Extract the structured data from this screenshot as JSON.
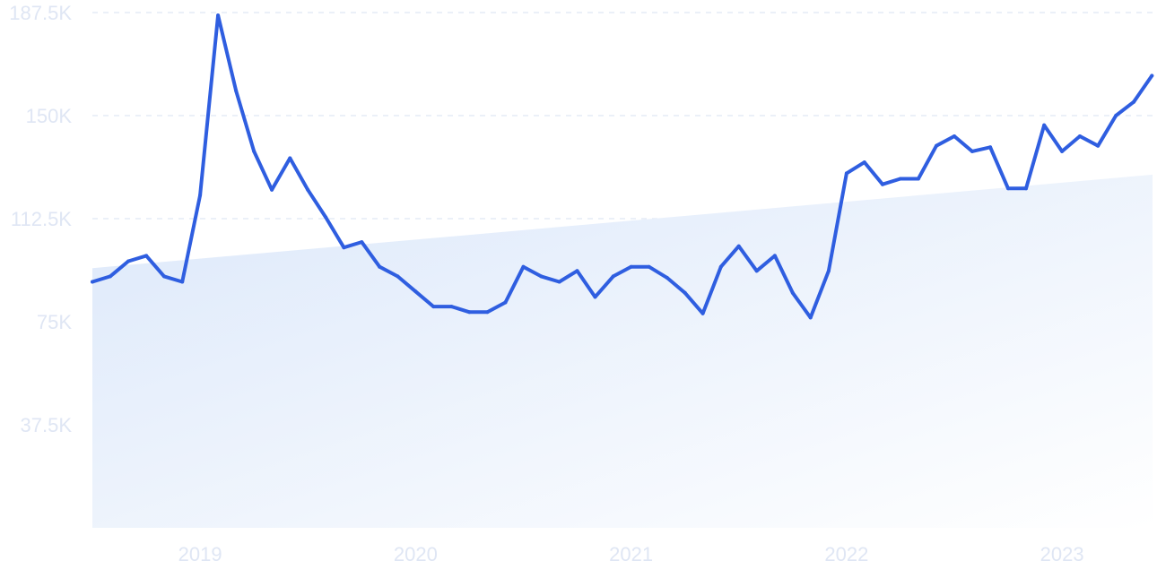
{
  "chart_data": {
    "type": "line",
    "title": "",
    "xlabel": "",
    "ylabel": "",
    "ylim": [
      0,
      187500
    ],
    "y_ticks": [
      37500,
      75000,
      112500,
      150000,
      187500
    ],
    "y_tick_labels": [
      "37.5K",
      "75K",
      "112.5K",
      "150K",
      "187.5K"
    ],
    "x_range": [
      2018.5,
      2023.42
    ],
    "x_ticks": [
      2019,
      2020,
      2021,
      2022,
      2023
    ],
    "x_tick_labels": [
      "2019",
      "2020",
      "2021",
      "2022",
      "2023"
    ],
    "grid": true,
    "series": [
      {
        "x": [
          2018.5,
          2018.583,
          2018.667,
          2018.75,
          2018.833,
          2018.917,
          2019.0,
          2019.083,
          2019.167,
          2019.25,
          2019.333,
          2019.417,
          2019.5,
          2019.583,
          2019.667,
          2019.75,
          2019.833,
          2019.917,
          2020.0,
          2020.083,
          2020.167,
          2020.25,
          2020.333,
          2020.417,
          2020.5,
          2020.583,
          2020.667,
          2020.75,
          2020.833,
          2020.917,
          2021.0,
          2021.083,
          2021.167,
          2021.25,
          2021.333,
          2021.417,
          2021.5,
          2021.583,
          2021.667,
          2021.75,
          2021.833,
          2021.917,
          2022.0,
          2022.083,
          2022.167,
          2022.25,
          2022.333,
          2022.417,
          2022.5,
          2022.583,
          2022.667,
          2022.75,
          2022.833,
          2022.917,
          2023.0,
          2023.083,
          2023.167,
          2023.25,
          2023.333,
          2023.417
        ],
        "values": [
          89500,
          91500,
          97000,
          99000,
          91500,
          89500,
          121000,
          186500,
          159000,
          137000,
          123000,
          134500,
          123000,
          113000,
          102000,
          104000,
          95000,
          91500,
          86000,
          80500,
          80500,
          78500,
          78500,
          82000,
          95000,
          91500,
          89500,
          93500,
          84000,
          91500,
          95000,
          95000,
          91000,
          85500,
          78000,
          95000,
          102500,
          93500,
          99000,
          85500,
          76500,
          93500,
          129000,
          133000,
          125000,
          127000,
          127000,
          139000,
          142500,
          137000,
          138500,
          123500,
          123500,
          146500,
          137000,
          142500,
          139000,
          150000,
          155000,
          164500
        ]
      }
    ],
    "trend": {
      "x": [
        2018.5,
        2023.42
      ],
      "values": [
        94500,
        128500
      ]
    },
    "colors": {
      "line": "#2f5ee0",
      "fill_top": "#dce8fa",
      "tick": "#dfe6f4"
    }
  }
}
